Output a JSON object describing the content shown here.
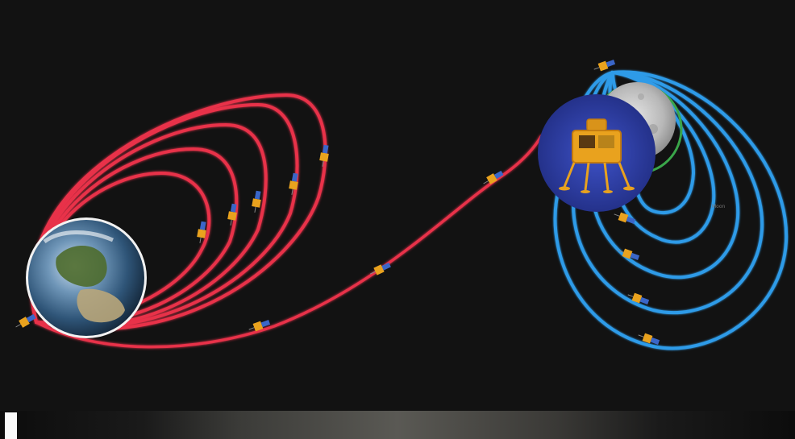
{
  "diagram": {
    "colors": {
      "background": "#121212",
      "earth_orbits": "#e8304a",
      "moon_orbits": "#2f9be8",
      "moon_final_orbit": "#3aa64a",
      "transfer_trajectory": "#e8304a",
      "lander_badge": "#2a3a9e",
      "lander_body": "#e9a21e",
      "spacecraft_body": "#e9a21e",
      "spacecraft_panel": "#3a66c8"
    },
    "earth": {
      "icon": "earth-globe-icon"
    },
    "moon": {
      "icon": "moon-icon"
    },
    "lander": {
      "icon": "lander-icon"
    },
    "small_label": "Moon",
    "earth_orbit_count": 5,
    "moon_orbit_count": 5
  }
}
